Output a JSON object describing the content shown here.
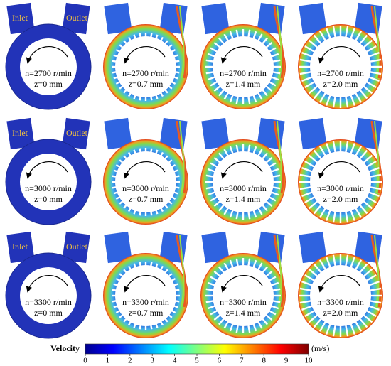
{
  "rows": [
    [
      {
        "speed": "n=2700 r/min",
        "depth": "z=0 mm",
        "inlet": "Inlet",
        "outlet": "Outlet"
      },
      {
        "speed": "n=2700 r/min",
        "depth": "z=0.7 mm"
      },
      {
        "speed": "n=2700 r/min",
        "depth": "z=1.4 mm"
      },
      {
        "speed": "n=2700 r/min",
        "depth": "z=2.0 mm"
      }
    ],
    [
      {
        "speed": "n=3000 r/min",
        "depth": "z=0 mm",
        "inlet": "Inlet",
        "outlet": "Outlet"
      },
      {
        "speed": "n=3000 r/min",
        "depth": "z=0.7 mm"
      },
      {
        "speed": "n=3000 r/min",
        "depth": "z=1.4 mm"
      },
      {
        "speed": "n=3000 r/min",
        "depth": "z=2.0 mm"
      }
    ],
    [
      {
        "speed": "n=3300 r/min",
        "depth": "z=0 mm",
        "inlet": "Inlet",
        "outlet": "Outlet"
      },
      {
        "speed": "n=3300 r/min",
        "depth": "z=0.7 mm"
      },
      {
        "speed": "n=3300 r/min",
        "depth": "z=1.4 mm"
      },
      {
        "speed": "n=3300 r/min",
        "depth": "z=2.0 mm"
      }
    ]
  ],
  "colorbar": {
    "label": "Velocity",
    "unit": "(m/s)",
    "range": [
      0,
      10
    ],
    "ticks": [
      0,
      1,
      2,
      3,
      4,
      5,
      6,
      7,
      8,
      9,
      10
    ]
  }
}
